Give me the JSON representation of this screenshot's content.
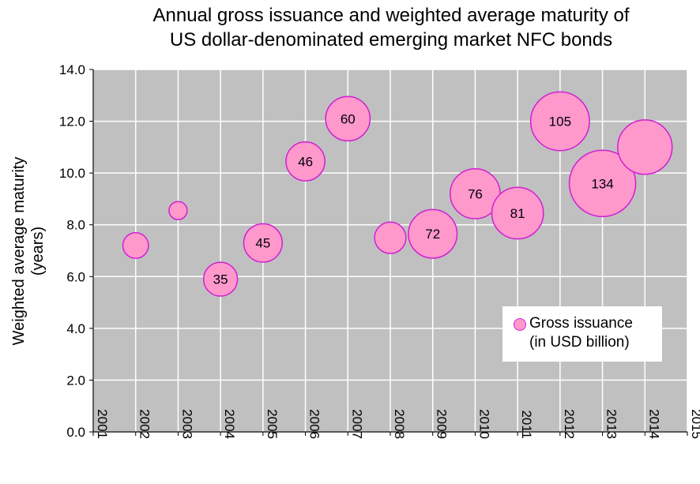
{
  "chart_data": {
    "type": "bubble",
    "title": "Annual gross issuance and weighted average maturity of",
    "subtitle": "US dollar-denominated emerging market NFC bonds",
    "ylabel_line1": "Weighted average maturity",
    "ylabel_line2": "(years)",
    "xlabel": "",
    "xlim": [
      2001,
      2015
    ],
    "ylim": [
      0,
      14
    ],
    "x_ticks": [
      "2001",
      "2002",
      "2003",
      "2004",
      "2005",
      "2006",
      "2007",
      "2008",
      "2009",
      "2010",
      "2011",
      "2012",
      "2013",
      "2014",
      "2015"
    ],
    "y_ticks": [
      "0.0",
      "2.0",
      "4.0",
      "6.0",
      "8.0",
      "10.0",
      "12.0",
      "14.0"
    ],
    "grid": true,
    "legend": {
      "position": "bottom-right",
      "label_line1": "Gross issuance",
      "label_line2": "(in USD billion)"
    },
    "colors": {
      "plot_bg": "#c0c0c0",
      "bubble_fill": "#ff99cc",
      "bubble_stroke": "#d11fd1",
      "grid": "#ffffff"
    },
    "points": [
      {
        "x": 2002,
        "y": 7.2,
        "size": 20,
        "label": ""
      },
      {
        "x": 2003,
        "y": 8.55,
        "size": 10,
        "label": ""
      },
      {
        "x": 2004,
        "y": 5.9,
        "size": 35,
        "label": "35"
      },
      {
        "x": 2005,
        "y": 7.3,
        "size": 45,
        "label": "45"
      },
      {
        "x": 2006,
        "y": 10.45,
        "size": 46,
        "label": "46"
      },
      {
        "x": 2007,
        "y": 12.1,
        "size": 60,
        "label": "60"
      },
      {
        "x": 2008,
        "y": 7.5,
        "size": 30,
        "label": ""
      },
      {
        "x": 2009,
        "y": 7.65,
        "size": 72,
        "label": "72"
      },
      {
        "x": 2010,
        "y": 9.2,
        "size": 76,
        "label": "76"
      },
      {
        "x": 2011,
        "y": 8.45,
        "size": 81,
        "label": "81"
      },
      {
        "x": 2012,
        "y": 12.0,
        "size": 105,
        "label": "105"
      },
      {
        "x": 2013,
        "y": 9.6,
        "size": 134,
        "label": "134"
      },
      {
        "x": 2014,
        "y": 11.0,
        "size": 90,
        "label": ""
      }
    ]
  }
}
